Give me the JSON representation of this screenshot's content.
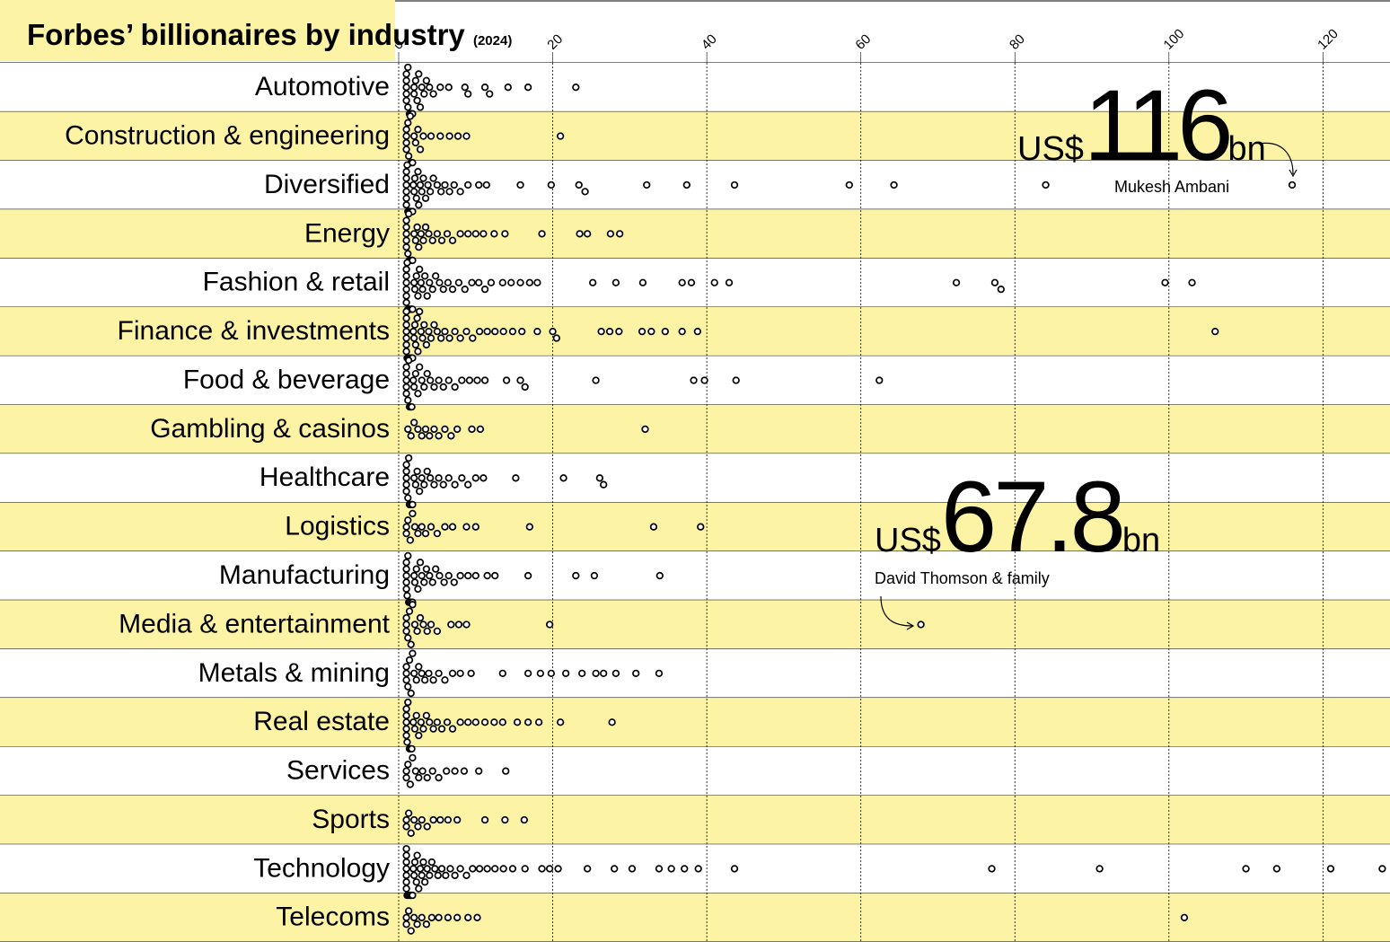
{
  "chart_data": {
    "type": "beeswarm",
    "title": "Forbes’ billionaires by industry",
    "subtitle": "(2024)",
    "xlim": [
      0,
      128.7
    ],
    "xticks": [
      0,
      20,
      40,
      60,
      80,
      100,
      120
    ],
    "grid": true,
    "row_colors": [
      "#ffffff",
      "#fdf3a4"
    ],
    "dot_color": "#000000",
    "series": [
      {
        "name": "Automotive",
        "values": [
          1,
          1,
          1,
          1,
          1,
          1.2,
          1.2,
          1.4,
          1.5,
          1.5,
          1.7,
          1.8,
          2,
          2,
          2.2,
          2.4,
          2.6,
          2.8,
          3,
          3.3,
          3.6,
          4,
          4.5,
          5.4,
          6.5,
          8.6,
          9,
          11.2,
          11.8,
          14.2,
          16.8,
          23
        ]
      },
      {
        "name": "Construction & engineering",
        "values": [
          1,
          1,
          1,
          1,
          1.2,
          1.3,
          1.5,
          1.6,
          1.8,
          2,
          2.2,
          2.5,
          2.8,
          3.2,
          4.2,
          5.4,
          6.6,
          7.7,
          8.8,
          21
        ]
      },
      {
        "name": "Diversified",
        "values": [
          1,
          1,
          1,
          1,
          1,
          1,
          1.1,
          1.2,
          1.3,
          1.4,
          1.5,
          1.5,
          1.6,
          1.8,
          1.9,
          2,
          2.1,
          2.3,
          2.5,
          2.6,
          2.8,
          3,
          3.2,
          3.5,
          3.8,
          4.1,
          4.5,
          5,
          5.5,
          6,
          6.6,
          7.2,
          8,
          9,
          10.4,
          11.4,
          15.8,
          19.8,
          23.4,
          24.2,
          32.2,
          37.4,
          43.6,
          58.5,
          64.3,
          84,
          116
        ]
      },
      {
        "name": "Energy",
        "values": [
          1,
          1,
          1,
          1,
          1,
          1.2,
          1.3,
          1.4,
          1.5,
          1.7,
          1.8,
          2,
          2.2,
          2.4,
          2.6,
          2.9,
          3.2,
          3.5,
          3.9,
          4.4,
          5,
          5.6,
          6.3,
          7,
          8,
          9,
          10,
          11,
          12.4,
          13.8,
          18.6,
          23.5,
          24.5,
          27.5,
          28.7
        ]
      },
      {
        "name": "Fashion & retail",
        "values": [
          1,
          1,
          1,
          1,
          1,
          1,
          1.1,
          1.2,
          1.3,
          1.4,
          1.5,
          1.6,
          1.7,
          1.8,
          2,
          2.1,
          2.3,
          2.5,
          2.7,
          2.9,
          3.1,
          3.4,
          3.7,
          4,
          4.4,
          4.8,
          5.3,
          5.8,
          6.4,
          7,
          7.8,
          8.6,
          9.5,
          10.4,
          11.2,
          12,
          13.5,
          14.6,
          15.8,
          17,
          18,
          25.2,
          28.2,
          31.7,
          36.8,
          38,
          41,
          42.9,
          72.4,
          77.4,
          78.2,
          99.5,
          103
        ]
      },
      {
        "name": "Finance & investments",
        "values": [
          1,
          1,
          1,
          1,
          1,
          1,
          1,
          1.1,
          1.2,
          1.2,
          1.3,
          1.4,
          1.5,
          1.5,
          1.6,
          1.7,
          1.8,
          1.9,
          2,
          2.1,
          2.2,
          2.4,
          2.5,
          2.7,
          2.9,
          3.1,
          3.3,
          3.6,
          3.9,
          4.2,
          4.6,
          5,
          5.5,
          6,
          6.6,
          7.3,
          8,
          8.8,
          9.6,
          10.5,
          11.5,
          12.5,
          13.6,
          14.8,
          16,
          18,
          20,
          20.5,
          26.3,
          27.4,
          28.6,
          31.6,
          32.8,
          34.6,
          36.8,
          38.8,
          106
        ]
      },
      {
        "name": "Food & beverage",
        "values": [
          1,
          1,
          1,
          1,
          1,
          1.2,
          1.3,
          1.4,
          1.5,
          1.7,
          1.9,
          2,
          2.2,
          2.5,
          2.7,
          3,
          3.3,
          3.7,
          4.1,
          4.6,
          5.2,
          5.8,
          6.5,
          7.3,
          8.2,
          9.2,
          10.2,
          11.2,
          14,
          15.8,
          16.4,
          25.6,
          38.3,
          39.7,
          43.8,
          62.4
        ]
      },
      {
        "name": "Gambling & casinos",
        "values": [
          1.2,
          1.6,
          2,
          2.5,
          3,
          3.5,
          4,
          4.6,
          5.2,
          6,
          6.8,
          7.6,
          9.5,
          10.6,
          32
        ]
      },
      {
        "name": "Healthcare",
        "values": [
          1,
          1,
          1,
          1,
          1,
          1.2,
          1.3,
          1.4,
          1.5,
          1.7,
          1.8,
          2,
          2.2,
          2.4,
          2.7,
          3,
          3.3,
          3.7,
          4.1,
          4.6,
          5.2,
          5.8,
          6.5,
          7.3,
          8.2,
          9,
          10,
          11,
          15.2,
          21.4,
          26.1,
          26.6
        ]
      },
      {
        "name": "Logistics",
        "values": [
          1,
          1,
          1.2,
          1.5,
          1.8,
          2.1,
          2.5,
          3,
          3.5,
          4.2,
          5,
          6,
          7,
          8.8,
          10,
          17,
          33.1,
          39.2
        ]
      },
      {
        "name": "Manufacturing",
        "values": [
          1,
          1,
          1,
          1,
          1,
          1.1,
          1.2,
          1.3,
          1.4,
          1.5,
          1.6,
          1.8,
          2,
          2.1,
          2.3,
          2.5,
          2.8,
          3,
          3.3,
          3.6,
          4,
          4.4,
          4.8,
          5.3,
          5.9,
          6.5,
          7.2,
          8,
          9,
          10,
          11.5,
          12.5,
          16.8,
          23,
          25.4,
          33.9
        ]
      },
      {
        "name": "Media & entertainment",
        "values": [
          1,
          1,
          1,
          1.2,
          1.4,
          1.6,
          1.8,
          2.1,
          2.4,
          2.8,
          3.2,
          3.7,
          4.2,
          5,
          6.8,
          7.8,
          8.8,
          19.6,
          67.8
        ]
      },
      {
        "name": "Metals & mining",
        "values": [
          1,
          1,
          1,
          1.2,
          1.4,
          1.6,
          1.8,
          2,
          2.3,
          2.6,
          3,
          3.4,
          3.9,
          4.5,
          5.2,
          6,
          7,
          8,
          9.4,
          13.5,
          16.8,
          18.4,
          19.8,
          21.7,
          23.8,
          25.6,
          26.6,
          28.2,
          30.8,
          33.8
        ]
      },
      {
        "name": "Real estate",
        "values": [
          1,
          1,
          1,
          1,
          1,
          1.1,
          1.2,
          1.4,
          1.5,
          1.7,
          1.9,
          2.1,
          2.3,
          2.6,
          2.9,
          3.2,
          3.6,
          4,
          4.5,
          5,
          5.6,
          6.3,
          7,
          8,
          9,
          10,
          11.2,
          12.4,
          13.5,
          15.4,
          16.8,
          18.2,
          21,
          27.7
        ]
      },
      {
        "name": "Services",
        "values": [
          1,
          1,
          1.2,
          1.5,
          1.8,
          2.2,
          2.6,
          3.1,
          3.7,
          4.4,
          5.2,
          6.2,
          7.3,
          8.5,
          10.4,
          13.9
        ]
      },
      {
        "name": "Sports",
        "values": [
          1,
          1,
          1.3,
          1.6,
          2,
          2.5,
          3,
          3.7,
          4.5,
          5.4,
          6.4,
          7.6,
          11.2,
          13.8,
          16.3
        ]
      },
      {
        "name": "Technology",
        "values": [
          1,
          1,
          1,
          1,
          1,
          1,
          1,
          1.1,
          1.2,
          1.3,
          1.4,
          1.5,
          1.5,
          1.6,
          1.7,
          1.8,
          1.9,
          2,
          2.1,
          2.3,
          2.4,
          2.6,
          2.8,
          3,
          3.2,
          3.4,
          3.7,
          4,
          4.3,
          4.7,
          5.1,
          5.6,
          6.1,
          6.7,
          7.3,
          8,
          8.8,
          9.6,
          10.5,
          11.5,
          12.5,
          13.6,
          14.8,
          16.4,
          18.6,
          19.6,
          20.7,
          24.5,
          28,
          30.3,
          33.8,
          35.4,
          37.1,
          38.9,
          43.6,
          77,
          91,
          110,
          114,
          121,
          127.7
        ]
      },
      {
        "name": "Telecoms",
        "values": [
          1,
          1,
          1.3,
          1.6,
          2,
          2.4,
          3,
          3.6,
          4.3,
          5.2,
          6.4,
          7.6,
          9,
          10.2,
          102
        ]
      }
    ],
    "annotations": [
      {
        "currency": "US$",
        "amount": "116",
        "unit": "bn",
        "name": "Mukesh Ambani"
      },
      {
        "currency": "US$",
        "amount": "67.8",
        "unit": "bn",
        "name": "David Thomson & family"
      }
    ]
  }
}
